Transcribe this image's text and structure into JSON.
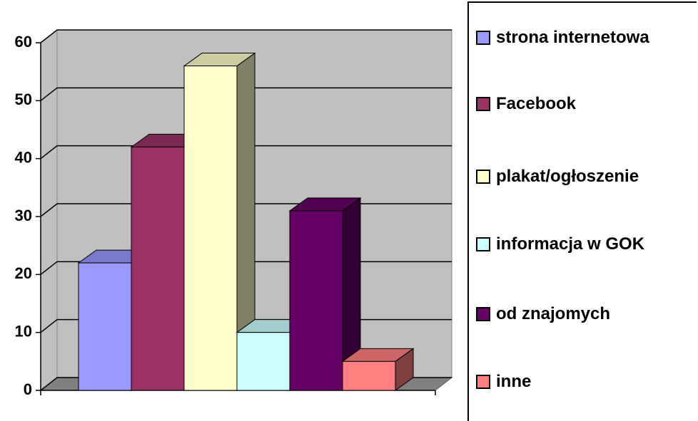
{
  "chart_data": {
    "type": "bar3d",
    "series": [
      {
        "name": "strona internetowa",
        "color": "#9999ff",
        "values": [
          22
        ]
      },
      {
        "name": "Facebook",
        "color": "#993366",
        "values": [
          42
        ]
      },
      {
        "name": "plakat/ogłoszenie",
        "color": "#ffffcc",
        "values": [
          56
        ]
      },
      {
        "name": "informacja w GOK",
        "color": "#ccffff",
        "values": [
          10
        ]
      },
      {
        "name": "od znajomych",
        "color": "#660066",
        "values": [
          31
        ]
      },
      {
        "name": "inne",
        "color": "#ff8080",
        "values": [
          5
        ]
      }
    ],
    "ylim": [
      0,
      60
    ],
    "yticks": [
      0,
      10,
      20,
      30,
      40,
      50,
      60
    ],
    "grid": true,
    "legend": "right"
  }
}
